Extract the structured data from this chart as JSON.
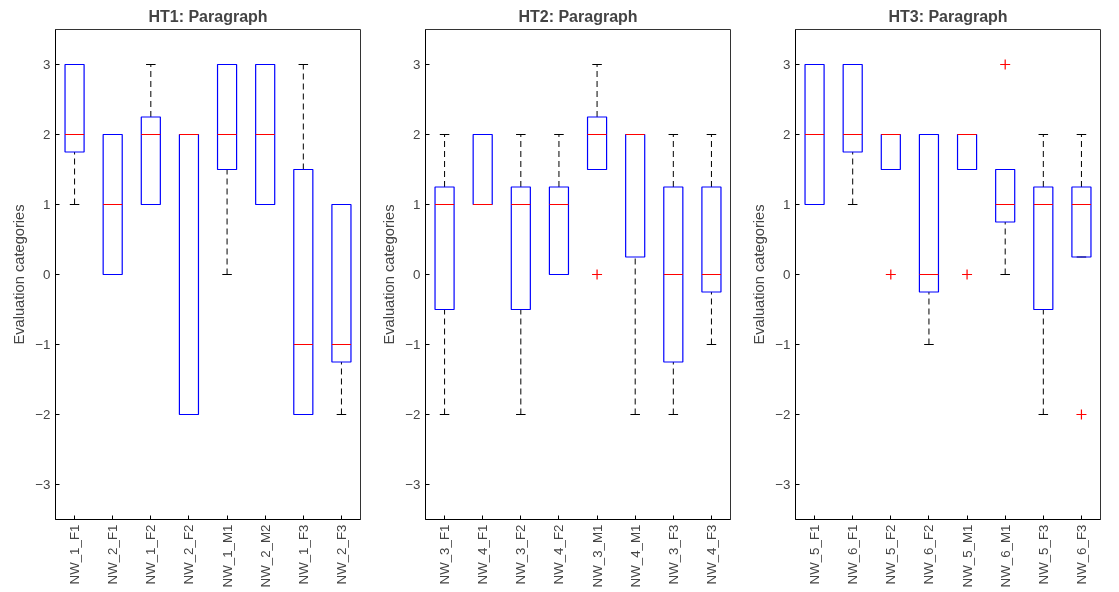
{
  "chart_data": [
    {
      "type": "box",
      "title": "HT1: Paragraph",
      "ylabel": "Evaluation categories",
      "categories": [
        "NW_1_F1",
        "NW_2_F1",
        "NW_1_F2",
        "NW_2_F2",
        "NW_1_M1",
        "NW_2_M2",
        "NW_1_F3",
        "NW_2_F3"
      ],
      "ylim": [
        -3.5,
        3.5
      ],
      "yticks": [
        -3,
        -2,
        -1,
        0,
        1,
        2,
        3
      ],
      "grid": false,
      "series": [
        {
          "color": "#0000ff",
          "boxes": [
            {
              "low": 1,
              "q1": 1.75,
              "median": 2,
              "q3": 3,
              "high": 3
            },
            {
              "low": 0,
              "q1": 0,
              "median": 1,
              "q3": 2,
              "high": 2
            },
            {
              "low": 1,
              "q1": 1,
              "median": 2,
              "q3": 2.25,
              "high": 3
            },
            {
              "low": -2,
              "q1": -2,
              "median": 2,
              "q3": 2,
              "high": 2
            },
            {
              "low": 0,
              "q1": 1.5,
              "median": 2,
              "q3": 3,
              "high": 3
            },
            {
              "low": 1,
              "q1": 1,
              "median": 2,
              "q3": 3,
              "high": 3
            },
            {
              "low": -2,
              "q1": -2,
              "median": -1,
              "q3": 1.5,
              "high": 3
            },
            {
              "low": -2,
              "q1": -1.25,
              "median": -1,
              "q3": 1,
              "high": 1
            }
          ]
        }
      ]
    },
    {
      "type": "box",
      "title": "HT2: Paragraph",
      "ylabel": "Evaluation categories",
      "categories": [
        "NW_3_F1",
        "NW_4_F1",
        "NW_3_F2",
        "NW_4_F2",
        "NW_3_M1",
        "NW_4_M1",
        "NW_3_F3",
        "NW_4_F3"
      ],
      "ylim": [
        -3.5,
        3.5
      ],
      "yticks": [
        -3,
        -2,
        -1,
        0,
        1,
        2,
        3
      ],
      "grid": false,
      "series": [
        {
          "color": "#0000ff",
          "boxes": [
            {
              "low": -2,
              "q1": -0.5,
              "median": 1,
              "q3": 1.25,
              "high": 2
            },
            {
              "low": 1,
              "q1": 1,
              "median": 1,
              "q3": 2,
              "high": 2
            },
            {
              "low": -2,
              "q1": -0.5,
              "median": 1,
              "q3": 1.25,
              "high": 2
            },
            {
              "low": 0,
              "q1": 0,
              "median": 1,
              "q3": 1.25,
              "high": 2
            },
            {
              "low": 1.5,
              "q1": 1.5,
              "median": 2,
              "q3": 2.25,
              "high": 3,
              "outliers": [
                0
              ]
            },
            {
              "low": -2,
              "q1": 0.25,
              "median": 2,
              "q3": 2,
              "high": 2
            },
            {
              "low": -2,
              "q1": -1.25,
              "median": 0,
              "q3": 1.25,
              "high": 2
            },
            {
              "low": -1,
              "q1": -0.25,
              "median": 0,
              "q3": 1.25,
              "high": 2
            }
          ]
        }
      ]
    },
    {
      "type": "box",
      "title": "HT3: Paragraph",
      "ylabel": "Evaluation categories",
      "categories": [
        "NW_5_F1",
        "NW_6_F1",
        "NW_5_F2",
        "NW_6_F2",
        "NW_5_M1",
        "NW_6_M1",
        "NW_5_F3",
        "NW_6_F3"
      ],
      "ylim": [
        -3.5,
        3.5
      ],
      "yticks": [
        -3,
        -2,
        -1,
        0,
        1,
        2,
        3
      ],
      "grid": false,
      "series": [
        {
          "color": "#0000ff",
          "boxes": [
            {
              "low": 1,
              "q1": 1,
              "median": 2,
              "q3": 3,
              "high": 3
            },
            {
              "low": 1,
              "q1": 1.75,
              "median": 2,
              "q3": 3,
              "high": 3
            },
            {
              "low": 1.5,
              "q1": 1.5,
              "median": 2,
              "q3": 2,
              "high": 2,
              "outliers": [
                0
              ]
            },
            {
              "low": -1,
              "q1": -0.25,
              "median": 0,
              "q3": 2,
              "high": 2
            },
            {
              "low": 1.5,
              "q1": 1.5,
              "median": 2,
              "q3": 2,
              "high": 2,
              "outliers": [
                0
              ]
            },
            {
              "low": 0,
              "q1": 0.75,
              "median": 1,
              "q3": 1.5,
              "high": 1.5,
              "outliers": [
                3
              ]
            },
            {
              "low": -2,
              "q1": -0.5,
              "median": 1,
              "q3": 1.25,
              "high": 2
            },
            {
              "low": 0.25,
              "q1": 0.25,
              "median": 1,
              "q3": 1.25,
              "high": 2,
              "outliers": [
                -2
              ]
            }
          ]
        }
      ]
    }
  ]
}
